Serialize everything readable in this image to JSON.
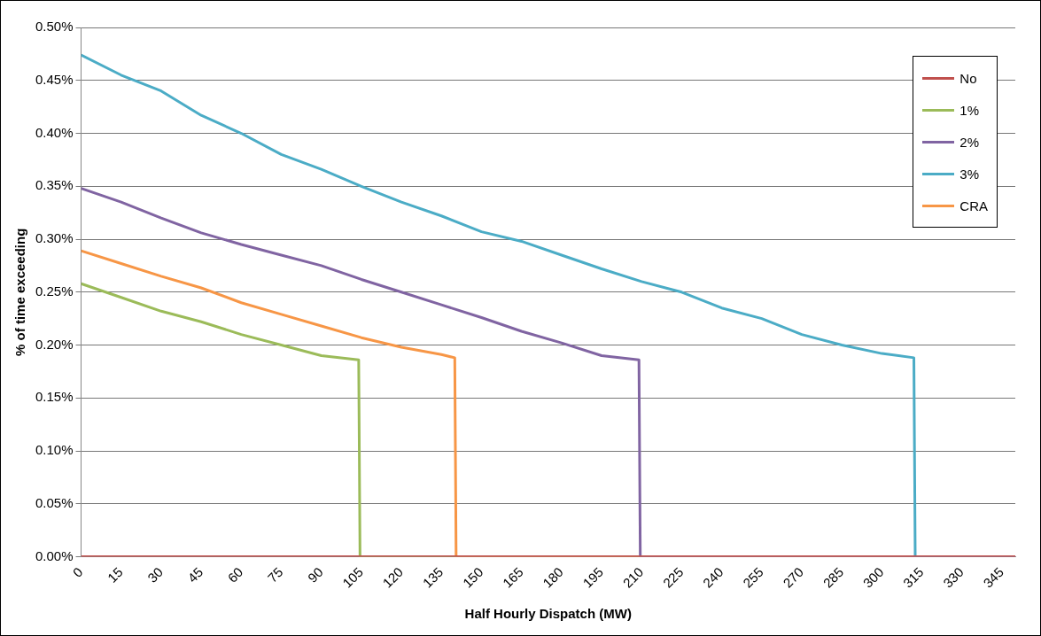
{
  "chart_data": {
    "type": "line",
    "xlabel": "Half Hourly Dispatch (MW)",
    "ylabel": "% of time exceeding",
    "xlim": [
      0,
      350
    ],
    "xticks": [
      0,
      15,
      30,
      45,
      60,
      75,
      90,
      105,
      120,
      135,
      150,
      165,
      180,
      195,
      210,
      225,
      240,
      255,
      270,
      285,
      300,
      315,
      330,
      345
    ],
    "ylim": [
      0,
      0.5
    ],
    "yticks": [
      {
        "value": 0,
        "label": "0.00%"
      },
      {
        "value": 0.05,
        "label": "0.05%"
      },
      {
        "value": 0.1,
        "label": "0.10%"
      },
      {
        "value": 0.15,
        "label": "0.15%"
      },
      {
        "value": 0.2,
        "label": "0.20%"
      },
      {
        "value": 0.25,
        "label": "0.25%"
      },
      {
        "value": 0.3,
        "label": "0.30%"
      },
      {
        "value": 0.35,
        "label": "0.35%"
      },
      {
        "value": 0.4,
        "label": "0.40%"
      },
      {
        "value": 0.45,
        "label": "0.45%"
      },
      {
        "value": 0.5,
        "label": "0.50%"
      }
    ],
    "grid": "y",
    "legend": "top right",
    "marker": "none",
    "line_style": "solid",
    "series": [
      {
        "name": "No",
        "color": "#c0504d",
        "x": [
          0,
          350
        ],
        "values": [
          0,
          0
        ]
      },
      {
        "name": "1%",
        "color": "#9bbb59",
        "x": [
          0,
          15,
          30,
          45,
          60,
          75,
          90,
          104,
          104.5,
          140.5
        ],
        "values": [
          0.258,
          0.245,
          0.232,
          0.222,
          0.21,
          0.2,
          0.19,
          0.186,
          0,
          0
        ]
      },
      {
        "name": "2%",
        "color": "#8064a2",
        "x": [
          0,
          15,
          30,
          45,
          60,
          75,
          90,
          105,
          120,
          135,
          150,
          165,
          180,
          195,
          209,
          209.5,
          350
        ],
        "values": [
          0.348,
          0.335,
          0.32,
          0.306,
          0.295,
          0.285,
          0.275,
          0.262,
          0.25,
          0.238,
          0.226,
          0.213,
          0.202,
          0.19,
          0.186,
          0,
          0
        ]
      },
      {
        "name": "3%",
        "color": "#4bacc6",
        "x": [
          0,
          15,
          30,
          45,
          60,
          75,
          90,
          105,
          120,
          135,
          150,
          165,
          180,
          195,
          210,
          225,
          240,
          255,
          270,
          285,
          300,
          312,
          312.5,
          350
        ],
        "values": [
          0.474,
          0.455,
          0.44,
          0.417,
          0.4,
          0.38,
          0.366,
          0.35,
          0.335,
          0.322,
          0.307,
          0.298,
          0.285,
          0.272,
          0.26,
          0.25,
          0.235,
          0.225,
          0.21,
          0.2,
          0.192,
          0.188,
          0,
          0
        ]
      },
      {
        "name": "CRA",
        "color": "#f79646",
        "x": [
          0,
          15,
          30,
          45,
          60,
          75,
          90,
          105,
          120,
          135,
          140,
          140.5,
          350
        ],
        "values": [
          0.289,
          0.277,
          0.265,
          0.254,
          0.24,
          0.229,
          0.218,
          0.207,
          0.198,
          0.191,
          0.188,
          0,
          0
        ]
      }
    ]
  }
}
